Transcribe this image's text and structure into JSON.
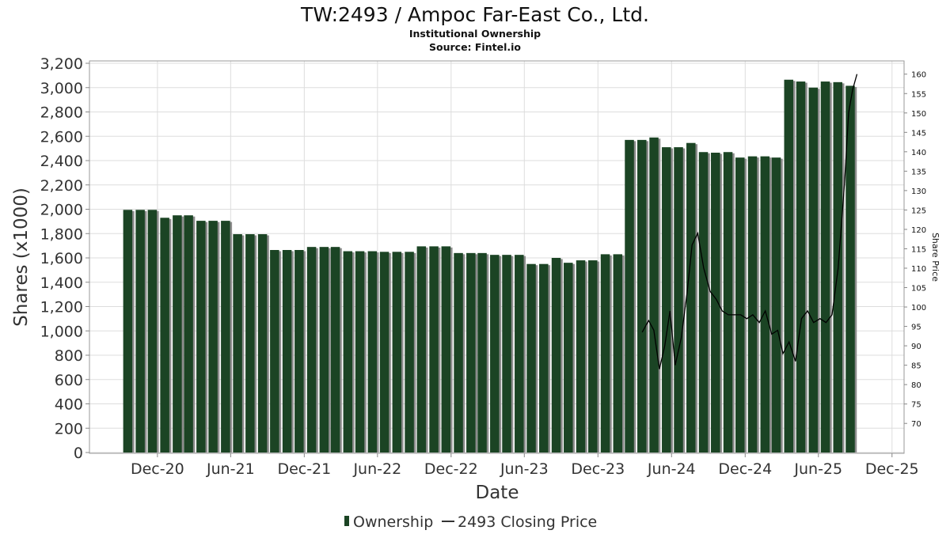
{
  "header": {
    "title": "TW:2493 / Ampoc Far-East Co., Ltd.",
    "subtitle": "Institutional Ownership",
    "source": "Source: Fintel.io"
  },
  "colors": {
    "bar": "#1b4424",
    "bar_shadow": "#8c8c8c",
    "price_line": "#000000",
    "grid": "#dddddd",
    "axis": "#888888"
  },
  "chart_data": {
    "type": "bar",
    "xlabel": "Date",
    "ylabel": "Shares (x1000)",
    "y2label": "Share Price",
    "ylim": [
      0,
      3200
    ],
    "y2lim": [
      62.5,
      162.8
    ],
    "xlim": [
      "2020-06-15",
      "2025-12-31"
    ],
    "yticks": [
      0,
      200,
      400,
      600,
      800,
      1000,
      1200,
      1400,
      1600,
      1800,
      2000,
      2200,
      2400,
      2600,
      2800,
      3000,
      3200
    ],
    "y2ticks": [
      70,
      75,
      80,
      85,
      90,
      95,
      100,
      105,
      110,
      115,
      120,
      125,
      130,
      135,
      140,
      145,
      150,
      155,
      160
    ],
    "xticks": [
      {
        "label": "Dec-20",
        "date": "2020-12-01"
      },
      {
        "label": "Jun-21",
        "date": "2021-06-01"
      },
      {
        "label": "Dec-21",
        "date": "2021-12-01"
      },
      {
        "label": "Jun-22",
        "date": "2022-06-01"
      },
      {
        "label": "Dec-22",
        "date": "2022-12-01"
      },
      {
        "label": "Jun-23",
        "date": "2023-06-01"
      },
      {
        "label": "Dec-23",
        "date": "2023-12-01"
      },
      {
        "label": "Jun-24",
        "date": "2024-06-01"
      },
      {
        "label": "Dec-24",
        "date": "2024-12-01"
      },
      {
        "label": "Jun-25",
        "date": "2025-06-01"
      },
      {
        "label": "Dec-25",
        "date": "2025-12-01"
      }
    ],
    "grid": true,
    "legend_position": "bottom",
    "series": [
      {
        "name": "Ownership",
        "kind": "bar",
        "axis": "left",
        "points": [
          {
            "date": "2020-09-30",
            "value": 1995
          },
          {
            "date": "2020-10-31",
            "value": 1995
          },
          {
            "date": "2020-11-30",
            "value": 1995
          },
          {
            "date": "2020-12-31",
            "value": 1930
          },
          {
            "date": "2021-01-31",
            "value": 1950
          },
          {
            "date": "2021-02-28",
            "value": 1950
          },
          {
            "date": "2021-03-31",
            "value": 1905
          },
          {
            "date": "2021-04-30",
            "value": 1905
          },
          {
            "date": "2021-05-31",
            "value": 1905
          },
          {
            "date": "2021-06-30",
            "value": 1795
          },
          {
            "date": "2021-07-31",
            "value": 1795
          },
          {
            "date": "2021-08-31",
            "value": 1795
          },
          {
            "date": "2021-09-30",
            "value": 1665
          },
          {
            "date": "2021-10-31",
            "value": 1665
          },
          {
            "date": "2021-11-30",
            "value": 1665
          },
          {
            "date": "2021-12-31",
            "value": 1690
          },
          {
            "date": "2022-01-31",
            "value": 1690
          },
          {
            "date": "2022-02-28",
            "value": 1690
          },
          {
            "date": "2022-03-31",
            "value": 1655
          },
          {
            "date": "2022-04-30",
            "value": 1655
          },
          {
            "date": "2022-05-31",
            "value": 1655
          },
          {
            "date": "2022-06-30",
            "value": 1650
          },
          {
            "date": "2022-07-31",
            "value": 1650
          },
          {
            "date": "2022-08-31",
            "value": 1650
          },
          {
            "date": "2022-09-30",
            "value": 1695
          },
          {
            "date": "2022-10-31",
            "value": 1695
          },
          {
            "date": "2022-11-30",
            "value": 1695
          },
          {
            "date": "2022-12-31",
            "value": 1640
          },
          {
            "date": "2023-01-31",
            "value": 1640
          },
          {
            "date": "2023-02-28",
            "value": 1640
          },
          {
            "date": "2023-03-31",
            "value": 1625
          },
          {
            "date": "2023-04-30",
            "value": 1625
          },
          {
            "date": "2023-05-31",
            "value": 1625
          },
          {
            "date": "2023-06-30",
            "value": 1550
          },
          {
            "date": "2023-07-31",
            "value": 1550
          },
          {
            "date": "2023-08-31",
            "value": 1600
          },
          {
            "date": "2023-09-30",
            "value": 1560
          },
          {
            "date": "2023-10-31",
            "value": 1580
          },
          {
            "date": "2023-11-30",
            "value": 1580
          },
          {
            "date": "2023-12-31",
            "value": 1630
          },
          {
            "date": "2024-01-31",
            "value": 1630
          },
          {
            "date": "2024-02-29",
            "value": 2570
          },
          {
            "date": "2024-03-31",
            "value": 2570
          },
          {
            "date": "2024-04-30",
            "value": 2590
          },
          {
            "date": "2024-05-31",
            "value": 2510
          },
          {
            "date": "2024-06-30",
            "value": 2510
          },
          {
            "date": "2024-07-31",
            "value": 2545
          },
          {
            "date": "2024-08-31",
            "value": 2470
          },
          {
            "date": "2024-09-30",
            "value": 2465
          },
          {
            "date": "2024-10-31",
            "value": 2470
          },
          {
            "date": "2024-11-30",
            "value": 2425
          },
          {
            "date": "2024-12-31",
            "value": 2435
          },
          {
            "date": "2025-01-31",
            "value": 2435
          },
          {
            "date": "2025-02-28",
            "value": 2425
          },
          {
            "date": "2025-03-31",
            "value": 3065
          },
          {
            "date": "2025-04-30",
            "value": 3050
          },
          {
            "date": "2025-05-31",
            "value": 3000
          },
          {
            "date": "2025-06-30",
            "value": 3050
          },
          {
            "date": "2025-07-31",
            "value": 3045
          },
          {
            "date": "2025-08-31",
            "value": 3015
          }
        ]
      },
      {
        "name": "2493 Closing Price",
        "kind": "line",
        "axis": "right",
        "points": [
          {
            "date": "2024-03-20",
            "value": 93.5
          },
          {
            "date": "2024-04-05",
            "value": 96.5
          },
          {
            "date": "2024-04-18",
            "value": 94.0
          },
          {
            "date": "2024-05-02",
            "value": 84.0
          },
          {
            "date": "2024-05-15",
            "value": 90.0
          },
          {
            "date": "2024-05-28",
            "value": 99.0
          },
          {
            "date": "2024-06-10",
            "value": 85.0
          },
          {
            "date": "2024-06-25",
            "value": 92.0
          },
          {
            "date": "2024-07-10",
            "value": 104.0
          },
          {
            "date": "2024-07-22",
            "value": 116.0
          },
          {
            "date": "2024-08-05",
            "value": 119.0
          },
          {
            "date": "2024-08-20",
            "value": 110.0
          },
          {
            "date": "2024-09-05",
            "value": 104.0
          },
          {
            "date": "2024-09-20",
            "value": 102.0
          },
          {
            "date": "2024-10-05",
            "value": 99.0
          },
          {
            "date": "2024-10-20",
            "value": 98.0
          },
          {
            "date": "2024-11-05",
            "value": 98.0
          },
          {
            "date": "2024-11-20",
            "value": 98.0
          },
          {
            "date": "2024-12-05",
            "value": 97.0
          },
          {
            "date": "2024-12-20",
            "value": 98.0
          },
          {
            "date": "2025-01-05",
            "value": 96.0
          },
          {
            "date": "2025-01-20",
            "value": 99.0
          },
          {
            "date": "2025-02-05",
            "value": 93.0
          },
          {
            "date": "2025-02-20",
            "value": 94.0
          },
          {
            "date": "2025-03-05",
            "value": 88.0
          },
          {
            "date": "2025-03-20",
            "value": 91.0
          },
          {
            "date": "2025-04-05",
            "value": 86.0
          },
          {
            "date": "2025-04-20",
            "value": 97.0
          },
          {
            "date": "2025-05-05",
            "value": 99.0
          },
          {
            "date": "2025-05-20",
            "value": 96.0
          },
          {
            "date": "2025-06-05",
            "value": 97.0
          },
          {
            "date": "2025-06-20",
            "value": 96.0
          },
          {
            "date": "2025-07-05",
            "value": 98.0
          },
          {
            "date": "2025-07-20",
            "value": 110.0
          },
          {
            "date": "2025-08-05",
            "value": 132.0
          },
          {
            "date": "2025-08-15",
            "value": 150.0
          },
          {
            "date": "2025-08-25",
            "value": 156.0
          },
          {
            "date": "2025-09-05",
            "value": 160.0
          }
        ]
      }
    ]
  }
}
